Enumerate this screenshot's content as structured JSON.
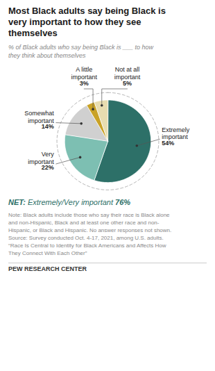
{
  "chart_data": {
    "type": "pie",
    "title": "Most Black adults say being Black is\nvery important to how they see\nthemselves",
    "subtitle": "% of Black adults who say being Black is ___ to how\nthey think about themselves",
    "categories": [
      "Extremely\nimportant",
      "Very\nimportant",
      "Somewhat\nimportant",
      "A little\nimportant",
      "Not at all\nimportant"
    ],
    "values": [
      54,
      22,
      14,
      3,
      5
    ],
    "value_labels": [
      "54%",
      "22%",
      "14%",
      "3%",
      "5%"
    ],
    "colors": [
      "#2d7068",
      "#7dbfb2",
      "#d0d0d0",
      "#c9a227",
      "#e8ddb0"
    ],
    "data_labels": true,
    "annotations": [
      {
        "label": "NET:",
        "text": "Extremely/Very important",
        "value_label": "76%"
      }
    ],
    "note": "Note: Black adults include those who say their race is Black alone\nand non-Hispanic, Black and at least one other race and non-\nHispanic, or Black and Hispanic. No answer responses not shown.\nSource: Survey conducted Oct. 4-17, 2021, among U.S. adults.\n“Race Is Central to Identity for Black Americans and Affects How\nThey Connect With Each Other”",
    "footer": "PEW RESEARCH CENTER"
  }
}
